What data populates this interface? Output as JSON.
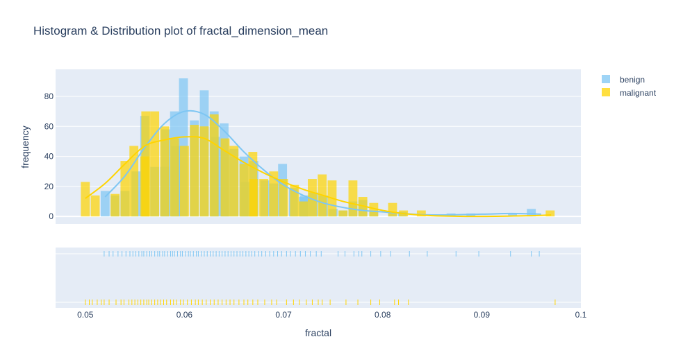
{
  "chart_data": {
    "type": "bar",
    "title": "Histogram & Distribution plot of fractal_dimension_mean",
    "xlabel": "fractal",
    "ylabel": "frequency",
    "xlim": [
      0.047,
      0.1
    ],
    "ylim": [
      -5,
      98
    ],
    "bin_width": 0.0009,
    "x_ticks": [
      "0.05",
      "0.06",
      "0.07",
      "0.08",
      "0.09",
      "0.1"
    ],
    "y_ticks": [
      "0",
      "20",
      "40",
      "60",
      "80"
    ],
    "legend_position": "top-right",
    "series": [
      {
        "name": "benign",
        "color": "#7ec6f3",
        "bins": [
          [
            0.052,
            17
          ],
          [
            0.053,
            14
          ],
          [
            0.054,
            17
          ],
          [
            0.0551,
            30
          ],
          [
            0.056,
            67
          ],
          [
            0.057,
            33
          ],
          [
            0.0581,
            58
          ],
          [
            0.058,
            33
          ],
          [
            0.059,
            70
          ],
          [
            0.0591,
            47
          ],
          [
            0.0599,
            92
          ],
          [
            0.061,
            64
          ],
          [
            0.062,
            84
          ],
          [
            0.063,
            70
          ],
          [
            0.0631,
            53
          ],
          [
            0.064,
            62
          ],
          [
            0.0641,
            44
          ],
          [
            0.065,
            45
          ],
          [
            0.066,
            40
          ],
          [
            0.0661,
            23
          ],
          [
            0.067,
            37
          ],
          [
            0.0681,
            24
          ],
          [
            0.069,
            22
          ],
          [
            0.0699,
            35
          ],
          [
            0.071,
            19
          ],
          [
            0.072,
            13
          ],
          [
            0.0721,
            14
          ],
          [
            0.073,
            16
          ],
          [
            0.074,
            14
          ],
          [
            0.075,
            5
          ],
          [
            0.076,
            4
          ],
          [
            0.077,
            10
          ],
          [
            0.078,
            11
          ],
          [
            0.0791,
            4
          ],
          [
            0.081,
            3
          ],
          [
            0.082,
            3
          ],
          [
            0.0869,
            2
          ],
          [
            0.0889,
            2
          ],
          [
            0.095,
            5
          ],
          [
            0.0931,
            2
          ]
        ],
        "curve": [
          [
            0.052,
            13
          ],
          [
            0.054,
            27
          ],
          [
            0.056,
            46
          ],
          [
            0.058,
            62
          ],
          [
            0.06,
            70
          ],
          [
            0.062,
            68
          ],
          [
            0.064,
            57
          ],
          [
            0.066,
            43
          ],
          [
            0.068,
            31
          ],
          [
            0.07,
            21
          ],
          [
            0.072,
            14
          ],
          [
            0.074,
            9
          ],
          [
            0.076,
            6
          ],
          [
            0.078,
            4
          ],
          [
            0.08,
            3
          ],
          [
            0.082,
            2
          ],
          [
            0.085,
            1
          ],
          [
            0.09,
            1.5
          ],
          [
            0.093,
            2
          ],
          [
            0.096,
            1.5
          ]
        ],
        "rug": [
          0.0519,
          0.0524,
          0.0528,
          0.0533,
          0.0537,
          0.0541,
          0.0545,
          0.0548,
          0.0551,
          0.0554,
          0.0557,
          0.0559,
          0.0562,
          0.0565,
          0.0567,
          0.057,
          0.0573,
          0.0575,
          0.0578,
          0.058,
          0.0583,
          0.0586,
          0.0588,
          0.059,
          0.0593,
          0.0596,
          0.0598,
          0.0601,
          0.0604,
          0.0606,
          0.0609,
          0.0612,
          0.0614,
          0.0617,
          0.062,
          0.0623,
          0.0626,
          0.0629,
          0.0632,
          0.0635,
          0.0638,
          0.0641,
          0.0644,
          0.0647,
          0.065,
          0.0653,
          0.0656,
          0.0659,
          0.0662,
          0.0665,
          0.0668,
          0.0671,
          0.0675,
          0.0678,
          0.0682,
          0.0686,
          0.069,
          0.0694,
          0.0698,
          0.0703,
          0.0707,
          0.0712,
          0.0717,
          0.0722,
          0.0727,
          0.0733,
          0.0738,
          0.0755,
          0.0762,
          0.0771,
          0.0776,
          0.0779,
          0.0788,
          0.0798,
          0.0808,
          0.0827,
          0.0845,
          0.0874,
          0.0897,
          0.0929,
          0.095,
          0.0958
        ]
      },
      {
        "name": "malignant",
        "color": "#ffd400",
        "bins": [
          [
            0.05,
            23
          ],
          [
            0.051,
            14
          ],
          [
            0.053,
            15
          ],
          [
            0.054,
            37
          ],
          [
            0.0549,
            47
          ],
          [
            0.056,
            40
          ],
          [
            0.0561,
            70
          ],
          [
            0.057,
            70
          ],
          [
            0.058,
            60
          ],
          [
            0.059,
            52
          ],
          [
            0.06,
            47
          ],
          [
            0.061,
            61
          ],
          [
            0.062,
            60
          ],
          [
            0.063,
            68
          ],
          [
            0.0641,
            52
          ],
          [
            0.065,
            47
          ],
          [
            0.066,
            35
          ],
          [
            0.0669,
            43
          ],
          [
            0.067,
            25
          ],
          [
            0.068,
            25
          ],
          [
            0.069,
            30
          ],
          [
            0.07,
            25
          ],
          [
            0.0711,
            21
          ],
          [
            0.072,
            10
          ],
          [
            0.0729,
            25
          ],
          [
            0.0739,
            28
          ],
          [
            0.0749,
            24
          ],
          [
            0.076,
            4
          ],
          [
            0.077,
            24
          ],
          [
            0.078,
            13
          ],
          [
            0.0791,
            9
          ],
          [
            0.081,
            9
          ],
          [
            0.0821,
            4
          ],
          [
            0.0839,
            4
          ],
          [
            0.0969,
            4
          ]
        ],
        "curve": [
          [
            0.05,
            12
          ],
          [
            0.052,
            22
          ],
          [
            0.054,
            35
          ],
          [
            0.056,
            47
          ],
          [
            0.058,
            51
          ],
          [
            0.06,
            53
          ],
          [
            0.062,
            52
          ],
          [
            0.064,
            44
          ],
          [
            0.066,
            36
          ],
          [
            0.068,
            29
          ],
          [
            0.07,
            23
          ],
          [
            0.072,
            18
          ],
          [
            0.074,
            14
          ],
          [
            0.076,
            10
          ],
          [
            0.078,
            7
          ],
          [
            0.08,
            4
          ],
          [
            0.082,
            2
          ],
          [
            0.085,
            0.5
          ],
          [
            0.09,
            0
          ],
          [
            0.095,
            0.5
          ],
          [
            0.097,
            1
          ]
        ],
        "rug": [
          0.05,
          0.0504,
          0.0507,
          0.0512,
          0.0516,
          0.0519,
          0.0524,
          0.0531,
          0.0536,
          0.0539,
          0.0544,
          0.0547,
          0.055,
          0.0553,
          0.0556,
          0.0559,
          0.0562,
          0.0564,
          0.0567,
          0.057,
          0.0573,
          0.0576,
          0.0579,
          0.0582,
          0.0586,
          0.0589,
          0.0592,
          0.0596,
          0.0599,
          0.0603,
          0.0607,
          0.0611,
          0.0614,
          0.0618,
          0.0622,
          0.0626,
          0.063,
          0.0634,
          0.0638,
          0.0642,
          0.0646,
          0.065,
          0.0655,
          0.066,
          0.0664,
          0.0669,
          0.0674,
          0.0681,
          0.0688,
          0.0693,
          0.0703,
          0.071,
          0.0716,
          0.0723,
          0.0729,
          0.0735,
          0.0739,
          0.0747,
          0.0763,
          0.0775,
          0.0788,
          0.0797,
          0.0812,
          0.0816,
          0.0826,
          0.0974
        ]
      }
    ]
  }
}
